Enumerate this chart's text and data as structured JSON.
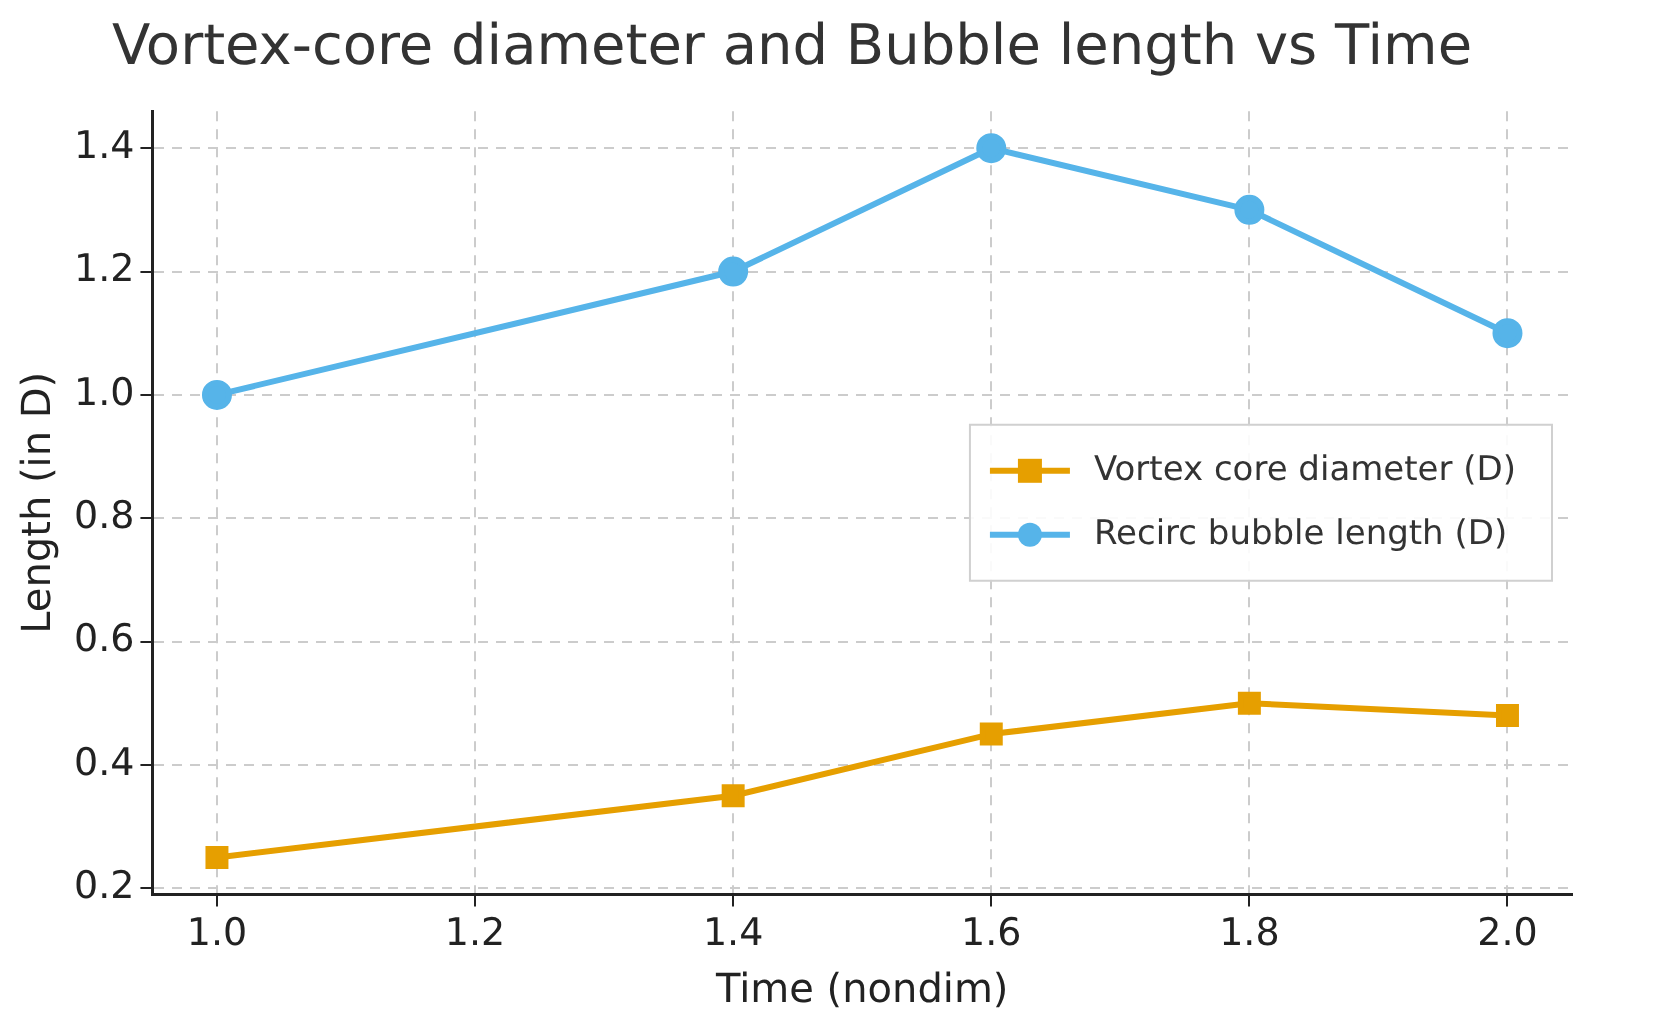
{
  "chart_data": {
    "type": "line",
    "title": "Vortex-core diameter and Bubble length vs Time",
    "xlabel": "Time (nondim)",
    "ylabel": "Length (in D)",
    "x": [
      1.0,
      1.4,
      1.6,
      1.8,
      2.0
    ],
    "series": [
      {
        "name": "Vortex core diameter (D)",
        "color": "#e69f00",
        "marker": "square",
        "values": [
          0.25,
          0.35,
          0.45,
          0.5,
          0.48
        ]
      },
      {
        "name": "Recirc bubble length (D)",
        "color": "#56b4e9",
        "marker": "circle",
        "values": [
          1.0,
          1.2,
          1.4,
          1.3,
          1.1
        ]
      }
    ],
    "xlim": [
      0.95,
      2.05
    ],
    "xticks": [
      {
        "value": 1.0,
        "label": "1.0"
      },
      1.2,
      1.4,
      1.6,
      1.8,
      {
        "value": 2.0,
        "label": "2.0"
      }
    ],
    "ylim": [
      0.19,
      1.46
    ],
    "yticks": [
      0.2,
      0.4,
      0.6,
      0.8,
      {
        "value": 1.0,
        "label": "1.0"
      },
      1.2,
      1.4
    ],
    "grid": true,
    "legend": "center right",
    "line_style": "solid"
  }
}
